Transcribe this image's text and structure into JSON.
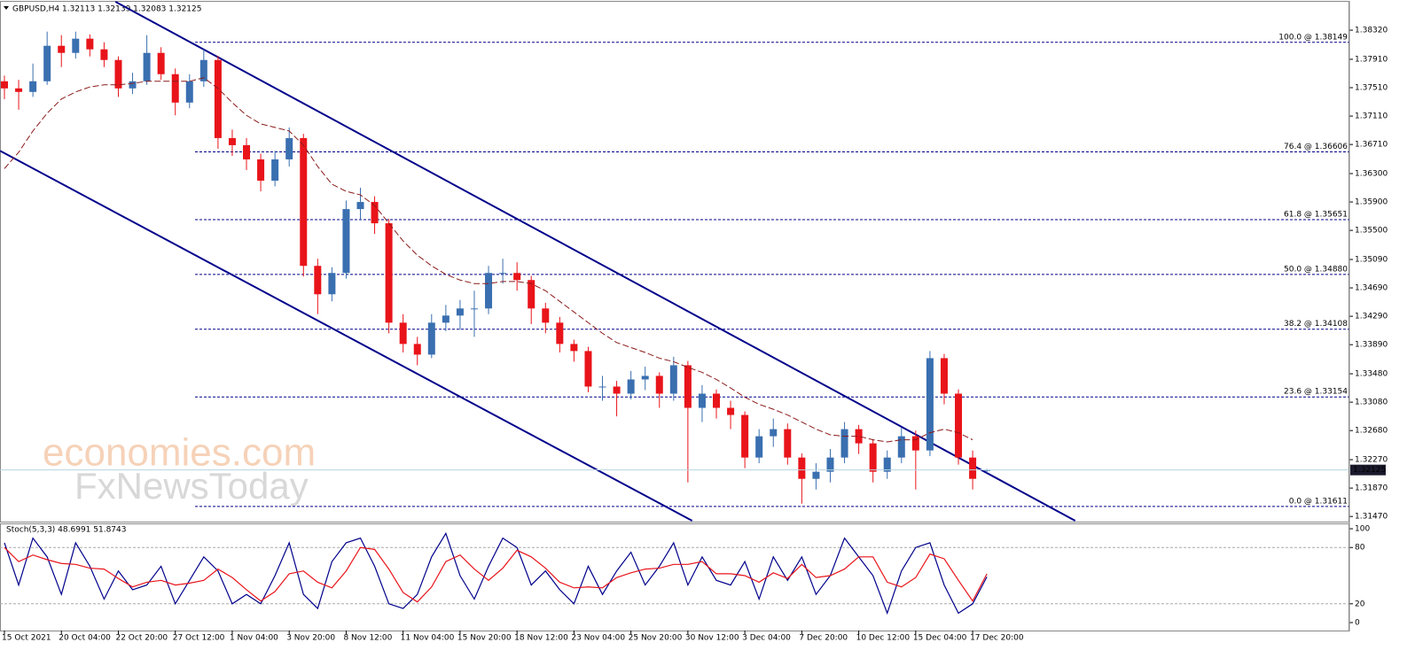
{
  "chart_data": [
    {
      "type": "candlestick",
      "title": "GBPUSD,H4  1.32113 1.32139 1.32083 1.32125",
      "watermark": [
        "economies.com",
        "FxNewsToday"
      ],
      "categories": [
        "15 Oct 2021",
        null,
        null,
        null,
        "20 Oct 04:00",
        null,
        null,
        null,
        "22 Oct 20:00",
        null,
        null,
        null,
        "27 Oct 12:00",
        null,
        null,
        null,
        "1 Nov 04:00",
        null,
        null,
        null,
        "3 Nov 20:00",
        null,
        null,
        null,
        "8 Nov 12:00",
        null,
        null,
        null,
        "11 Nov 04:00",
        null,
        null,
        null,
        "15 Nov 20:00",
        null,
        null,
        null,
        "18 Nov 12:00",
        null,
        null,
        null,
        "23 Nov 04:00",
        null,
        null,
        null,
        "25 Nov 20:00",
        null,
        null,
        null,
        "30 Nov 12:00",
        null,
        null,
        null,
        "3 Dec 04:00",
        null,
        null,
        null,
        "7 Dec 20:00",
        null,
        null,
        null,
        "10 Dec 12:00",
        null,
        null,
        null,
        "15 Dec 04:00",
        null,
        null,
        null,
        "17 Dec 20:00",
        null
      ],
      "candles": [
        [
          1.376,
          1.3768,
          1.3735,
          1.375
        ],
        [
          1.375,
          1.3762,
          1.372,
          1.3745
        ],
        [
          1.3745,
          1.3785,
          1.3738,
          1.376
        ],
        [
          1.376,
          1.383,
          1.3755,
          1.381
        ],
        [
          1.381,
          1.3825,
          1.378,
          1.38
        ],
        [
          1.38,
          1.383,
          1.3792,
          1.382
        ],
        [
          1.382,
          1.3826,
          1.3795,
          1.3805
        ],
        [
          1.3805,
          1.3815,
          1.378,
          1.379
        ],
        [
          1.379,
          1.3795,
          1.3738,
          1.375
        ],
        [
          1.375,
          1.3772,
          1.3742,
          1.376
        ],
        [
          1.376,
          1.3825,
          1.3755,
          1.38
        ],
        [
          1.38,
          1.3808,
          1.3762,
          1.377
        ],
        [
          1.377,
          1.3778,
          1.3712,
          1.373
        ],
        [
          1.373,
          1.377,
          1.3722,
          1.376
        ],
        [
          1.376,
          1.3805,
          1.3752,
          1.379
        ],
        [
          1.379,
          1.3796,
          1.3665,
          1.368
        ],
        [
          1.368,
          1.3692,
          1.3655,
          1.367
        ],
        [
          1.367,
          1.368,
          1.3635,
          1.365
        ],
        [
          1.365,
          1.3658,
          1.3605,
          1.362
        ],
        [
          1.362,
          1.3662,
          1.3612,
          1.365
        ],
        [
          1.365,
          1.3695,
          1.364,
          1.368
        ],
        [
          1.368,
          1.3686,
          1.3485,
          1.35
        ],
        [
          1.35,
          1.351,
          1.3432,
          1.346
        ],
        [
          1.346,
          1.3498,
          1.345,
          1.349
        ],
        [
          1.349,
          1.3592,
          1.3482,
          1.358
        ],
        [
          1.358,
          1.361,
          1.3565,
          1.359
        ],
        [
          1.359,
          1.3598,
          1.3545,
          1.356
        ],
        [
          1.356,
          1.3566,
          1.3405,
          1.342
        ],
        [
          1.342,
          1.3432,
          1.3378,
          1.339
        ],
        [
          1.339,
          1.34,
          1.336,
          1.3375
        ],
        [
          1.3375,
          1.3432,
          1.337,
          1.342
        ],
        [
          1.342,
          1.3445,
          1.3408,
          1.343
        ],
        [
          1.343,
          1.3452,
          1.341,
          1.344
        ],
        [
          1.344,
          1.3465,
          1.34,
          1.344
        ],
        [
          1.344,
          1.35,
          1.3432,
          1.349
        ],
        [
          1.349,
          1.351,
          1.3475,
          1.349
        ],
        [
          1.349,
          1.3505,
          1.3465,
          1.348
        ],
        [
          1.348,
          1.3486,
          1.3418,
          1.344
        ],
        [
          1.344,
          1.3448,
          1.3405,
          1.342
        ],
        [
          1.342,
          1.3428,
          1.3378,
          1.339
        ],
        [
          1.339,
          1.3396,
          1.3365,
          1.338
        ],
        [
          1.338,
          1.3386,
          1.3322,
          1.333
        ],
        [
          1.333,
          1.3345,
          1.331,
          1.333
        ],
        [
          1.333,
          1.3338,
          1.3288,
          1.332
        ],
        [
          1.332,
          1.3352,
          1.3312,
          1.334
        ],
        [
          1.334,
          1.3358,
          1.3325,
          1.3345
        ],
        [
          1.3345,
          1.335,
          1.33,
          1.332
        ],
        [
          1.332,
          1.3372,
          1.331,
          1.336
        ],
        [
          1.336,
          1.3366,
          1.3195,
          1.33
        ],
        [
          1.33,
          1.3332,
          1.328,
          1.332
        ],
        [
          1.332,
          1.3326,
          1.3285,
          1.33
        ],
        [
          1.33,
          1.331,
          1.327,
          1.329
        ],
        [
          1.329,
          1.3295,
          1.3215,
          1.323
        ],
        [
          1.323,
          1.327,
          1.3222,
          1.326
        ],
        [
          1.326,
          1.3285,
          1.3245,
          1.327
        ],
        [
          1.327,
          1.3278,
          1.322,
          1.323
        ],
        [
          1.323,
          1.3236,
          1.3165,
          1.32
        ],
        [
          1.32,
          1.3222,
          1.3185,
          1.321
        ],
        [
          1.321,
          1.3242,
          1.3195,
          1.323
        ],
        [
          1.323,
          1.328,
          1.3222,
          1.327
        ],
        [
          1.327,
          1.3276,
          1.3235,
          1.325
        ],
        [
          1.325,
          1.3256,
          1.3195,
          1.321
        ],
        [
          1.321,
          1.324,
          1.32,
          1.323
        ],
        [
          1.323,
          1.3272,
          1.3222,
          1.326
        ],
        [
          1.326,
          1.3268,
          1.3185,
          1.324
        ],
        [
          1.324,
          1.338,
          1.3232,
          1.337
        ],
        [
          1.337,
          1.3376,
          1.3305,
          1.332
        ],
        [
          1.332,
          1.3326,
          1.322,
          1.323
        ],
        [
          1.323,
          1.324,
          1.3185,
          1.32
        ],
        [
          1.32113,
          1.32139,
          1.32083,
          1.32125
        ]
      ],
      "up_color": "#3a6fb0",
      "down_color": "#e8141a",
      "ma": {
        "color": "#8b1a1a",
        "values": [
          1.3637,
          1.366,
          1.369,
          1.3715,
          1.3735,
          1.3745,
          1.3752,
          1.3755,
          1.3755,
          1.3757,
          1.376,
          1.376,
          1.376,
          1.376,
          1.3765,
          1.375,
          1.373,
          1.3712,
          1.37,
          1.3695,
          1.369,
          1.367,
          1.364,
          1.3615,
          1.3605,
          1.36,
          1.3585,
          1.356,
          1.3535,
          1.3515,
          1.35,
          1.3488,
          1.348,
          1.3475,
          1.3475,
          1.3478,
          1.3478,
          1.3475,
          1.3465,
          1.345,
          1.3435,
          1.342,
          1.3405,
          1.3392,
          1.3385,
          1.3378,
          1.337,
          1.3365,
          1.3357,
          1.335,
          1.334,
          1.3328,
          1.3315,
          1.3305,
          1.3298,
          1.329,
          1.328,
          1.327,
          1.3262,
          1.326,
          1.326,
          1.3255,
          1.3252,
          1.3255,
          1.3255,
          1.3265,
          1.327,
          1.3265,
          1.3255,
          null
        ]
      },
      "fib_levels": [
        {
          "value": 1.38149,
          "label": "100.0 @ 1.38149"
        },
        {
          "value": 1.36606,
          "label": "76.4 @ 1.36606"
        },
        {
          "value": 1.35651,
          "label": "61.8 @ 1.35651"
        },
        {
          "value": 1.3488,
          "label": "50.0 @ 1.34880"
        },
        {
          "value": 1.34108,
          "label": "38.2 @ 1.34108"
        },
        {
          "value": 1.33154,
          "label": "23.6 @ 1.33154"
        },
        {
          "value": 1.31611,
          "label": "0.0 @ 1.31611"
        }
      ],
      "fib_color": "#00008b",
      "channels": [
        {
          "color": "#00008b",
          "points": [
            [
              7.8,
              1.3872
            ],
            [
              75.2,
              1.3141
            ]
          ]
        },
        {
          "color": "#00008b",
          "points": [
            [
              -0.3,
              1.3662
            ],
            [
              48.3,
              1.3141
            ]
          ]
        }
      ],
      "ylim": [
        1.3141,
        1.3872
      ],
      "yticks": [
        {
          "value": 1.3832,
          "label": "1.38320"
        },
        {
          "value": 1.3791,
          "label": "1.37910"
        },
        {
          "value": 1.3751,
          "label": "1.37510"
        },
        {
          "value": 1.3711,
          "label": "1.37110"
        },
        {
          "value": 1.3671,
          "label": "1.36710"
        },
        {
          "value": 1.363,
          "label": "1.36300"
        },
        {
          "value": 1.359,
          "label": "1.35900"
        },
        {
          "value": 1.355,
          "label": "1.35500"
        },
        {
          "value": 1.3509,
          "label": "1.35090"
        },
        {
          "value": 1.3469,
          "label": "1.34690"
        },
        {
          "value": 1.3429,
          "label": "1.34290"
        },
        {
          "value": 1.3389,
          "label": "1.33890"
        },
        {
          "value": 1.3348,
          "label": "1.33480"
        },
        {
          "value": 1.3308,
          "label": "1.33080"
        },
        {
          "value": 1.3268,
          "label": "1.32680"
        },
        {
          "value": 1.3227,
          "label": "1.32270"
        },
        {
          "value": 1.3187,
          "label": "1.31870"
        },
        {
          "value": 1.3147,
          "label": "1.31470"
        }
      ]
    },
    {
      "type": "line",
      "title": "Stoch(5,3,3) 48.6991 51.8743",
      "series": [
        {
          "color": "#00008b",
          "values": [
            85,
            40,
            90,
            70,
            30,
            85,
            60,
            25,
            55,
            35,
            40,
            60,
            20,
            45,
            70,
            55,
            20,
            30,
            20,
            50,
            85,
            30,
            15,
            65,
            85,
            90,
            60,
            20,
            15,
            30,
            70,
            95,
            50,
            25,
            60,
            90,
            80,
            40,
            55,
            35,
            20,
            60,
            30,
            55,
            75,
            40,
            60,
            85,
            40,
            70,
            45,
            40,
            65,
            25,
            70,
            45,
            70,
            30,
            50,
            90,
            70,
            50,
            10,
            55,
            80,
            85,
            40,
            10,
            20,
            48.6991
          ]
        },
        {
          "color": "#e8141a",
          "values": [
            80,
            65,
            72,
            67,
            63,
            62,
            58,
            57,
            47,
            38,
            43,
            45,
            40,
            42,
            45,
            57,
            48,
            35,
            23,
            33,
            52,
            55,
            43,
            37,
            55,
            80,
            78,
            57,
            32,
            22,
            38,
            65,
            72,
            57,
            45,
            58,
            77,
            70,
            58,
            43,
            37,
            38,
            37,
            48,
            53,
            57,
            58,
            62,
            62,
            65,
            52,
            52,
            50,
            43,
            53,
            47,
            62,
            48,
            50,
            57,
            70,
            70,
            43,
            38,
            48,
            73,
            68,
            45,
            23,
            51.8743
          ]
        }
      ],
      "ylim": [
        -8.5,
        105.7
      ],
      "yticks": [
        0,
        20,
        80,
        100
      ],
      "level_ticks": [
        20,
        80
      ]
    }
  ]
}
